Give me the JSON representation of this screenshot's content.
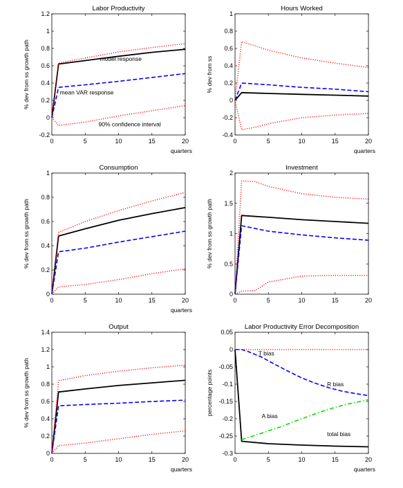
{
  "chart_data": [
    {
      "type": "line",
      "title": "Labor Productivity",
      "xlabel": "quarters",
      "ylabel": "% dev from ss growth path",
      "xlim": [
        0,
        20
      ],
      "ylim": [
        -0.2,
        1.2
      ],
      "xticks": [
        "0",
        "5",
        "10",
        "15",
        "20"
      ],
      "yticks": [
        "-0.2",
        "0",
        "0.2",
        "0.4",
        "0.6",
        "0.8",
        "1",
        "1.2"
      ],
      "grid": false,
      "series": [
        {
          "key": "model",
          "color": "#000000",
          "style": "solid",
          "x": [
            0,
            1,
            5,
            10,
            15,
            20
          ],
          "y": [
            0,
            0.62,
            0.66,
            0.71,
            0.755,
            0.79
          ]
        },
        {
          "key": "var",
          "color": "#0000ff",
          "style": "dashed",
          "x": [
            0,
            1,
            5,
            10,
            15,
            20
          ],
          "y": [
            0,
            0.35,
            0.38,
            0.42,
            0.465,
            0.51
          ]
        },
        {
          "key": "ci_upper",
          "color": "#ff0000",
          "style": "dotted",
          "x": [
            0,
            1,
            5,
            10,
            15,
            20
          ],
          "y": [
            0,
            0.63,
            0.69,
            0.76,
            0.81,
            0.855
          ]
        },
        {
          "key": "ci_lower",
          "color": "#ff0000",
          "style": "dotted",
          "x": [
            0,
            1,
            5,
            10,
            15,
            20
          ],
          "y": [
            0,
            -0.09,
            -0.05,
            0.02,
            0.08,
            0.14
          ]
        }
      ],
      "annotations": [
        {
          "text": "model response",
          "x": 7.2,
          "y": 0.655
        },
        {
          "text": "mean VAR response",
          "x": 1.2,
          "y": 0.27
        },
        {
          "text": "90% confidence interval",
          "x": 7.0,
          "y": -0.1
        }
      ]
    },
    {
      "type": "line",
      "title": "Hours Worked",
      "xlabel": "quarters",
      "ylabel": "% dev from ss",
      "xlim": [
        0,
        20
      ],
      "ylim": [
        -0.4,
        1
      ],
      "xticks": [
        "0",
        "5",
        "10",
        "15",
        "20"
      ],
      "yticks": [
        "-0.4",
        "-0.2",
        "0",
        "0.2",
        "0.4",
        "0.6",
        "0.8",
        "1"
      ],
      "grid": false,
      "series": [
        {
          "key": "model",
          "color": "#000000",
          "style": "solid",
          "x": [
            0,
            1,
            5,
            10,
            15,
            20
          ],
          "y": [
            0,
            0.09,
            0.08,
            0.07,
            0.06,
            0.05
          ]
        },
        {
          "key": "var",
          "color": "#0000ff",
          "style": "dashed",
          "x": [
            0,
            1,
            5,
            10,
            15,
            20
          ],
          "y": [
            0,
            0.2,
            0.18,
            0.15,
            0.13,
            0.1
          ]
        },
        {
          "key": "ci_upper",
          "color": "#ff0000",
          "style": "dotted",
          "x": [
            0,
            1,
            3,
            5,
            10,
            15,
            20
          ],
          "y": [
            0,
            0.68,
            0.63,
            0.58,
            0.49,
            0.43,
            0.38
          ]
        },
        {
          "key": "ci_lower",
          "color": "#ff0000",
          "style": "dotted",
          "x": [
            0,
            1,
            3,
            5,
            10,
            15,
            20
          ],
          "y": [
            0,
            -0.34,
            -0.31,
            -0.27,
            -0.2,
            -0.17,
            -0.15
          ]
        }
      ],
      "annotations": []
    },
    {
      "type": "line",
      "title": "Consumption",
      "xlabel": "quarters",
      "ylabel": "% dev from ss growth path",
      "xlim": [
        0,
        20
      ],
      "ylim": [
        0,
        1
      ],
      "xticks": [
        "0",
        "5",
        "10",
        "15",
        "20"
      ],
      "yticks": [
        "0",
        "0.2",
        "0.4",
        "0.6",
        "0.8",
        "1"
      ],
      "grid": false,
      "series": [
        {
          "key": "model",
          "color": "#000000",
          "style": "solid",
          "x": [
            0,
            1,
            5,
            10,
            15,
            20
          ],
          "y": [
            0,
            0.48,
            0.54,
            0.61,
            0.665,
            0.715
          ]
        },
        {
          "key": "var",
          "color": "#0000ff",
          "style": "dashed",
          "x": [
            0,
            1,
            5,
            10,
            15,
            20
          ],
          "y": [
            0,
            0.35,
            0.38,
            0.43,
            0.475,
            0.52
          ]
        },
        {
          "key": "ci_upper",
          "color": "#ff0000",
          "style": "dotted",
          "x": [
            0,
            1,
            5,
            10,
            15,
            20
          ],
          "y": [
            0,
            0.51,
            0.6,
            0.69,
            0.77,
            0.84
          ]
        },
        {
          "key": "ci_lower",
          "color": "#ff0000",
          "style": "dotted",
          "x": [
            0,
            1,
            5,
            10,
            15,
            20
          ],
          "y": [
            0,
            0.06,
            0.08,
            0.12,
            0.17,
            0.21
          ]
        }
      ],
      "annotations": []
    },
    {
      "type": "line",
      "title": "Investment",
      "xlabel": "",
      "ylabel": "% dev from ss growth path",
      "xlim": [
        0,
        20
      ],
      "ylim": [
        0,
        2
      ],
      "xticks": [
        "0",
        "5",
        "10",
        "15",
        "20"
      ],
      "yticks": [
        "0",
        "0.5",
        "1",
        "1.5",
        "2"
      ],
      "grid": false,
      "series": [
        {
          "key": "model",
          "color": "#000000",
          "style": "solid",
          "x": [
            0,
            1,
            5,
            10,
            15,
            20
          ],
          "y": [
            0,
            1.3,
            1.27,
            1.23,
            1.2,
            1.17
          ]
        },
        {
          "key": "var",
          "color": "#0000ff",
          "style": "dashed",
          "x": [
            0,
            1,
            5,
            10,
            15,
            20
          ],
          "y": [
            0,
            1.13,
            1.04,
            0.98,
            0.93,
            0.89
          ]
        },
        {
          "key": "ci_upper",
          "color": "#ff0000",
          "style": "dotted",
          "x": [
            0,
            1,
            3,
            5,
            10,
            15,
            20
          ],
          "y": [
            0,
            1.87,
            1.86,
            1.78,
            1.66,
            1.6,
            1.57
          ]
        },
        {
          "key": "ci_lower",
          "color": "#ff0000",
          "style": "dotted",
          "x": [
            0,
            1,
            3,
            5,
            10,
            15,
            20
          ],
          "y": [
            0,
            0.05,
            0.06,
            0.2,
            0.3,
            0.31,
            0.31
          ]
        }
      ],
      "annotations": []
    },
    {
      "type": "line",
      "title": "Output",
      "xlabel": "quarters",
      "ylabel": "% dev from ss growth path",
      "xlim": [
        0,
        20
      ],
      "ylim": [
        0,
        1.4
      ],
      "xticks": [
        "0",
        "5",
        "10",
        "15",
        "20"
      ],
      "yticks": [
        "0",
        "0.2",
        "0.4",
        "0.6",
        "0.8",
        "1",
        "1.2",
        "1.4"
      ],
      "grid": false,
      "series": [
        {
          "key": "model",
          "color": "#000000",
          "style": "solid",
          "x": [
            0,
            1,
            5,
            10,
            15,
            20
          ],
          "y": [
            0,
            0.71,
            0.745,
            0.785,
            0.815,
            0.845
          ]
        },
        {
          "key": "var",
          "color": "#0000ff",
          "style": "dashed",
          "x": [
            0,
            1,
            5,
            10,
            15,
            20
          ],
          "y": [
            0,
            0.55,
            0.565,
            0.58,
            0.6,
            0.615
          ]
        },
        {
          "key": "ci_upper",
          "color": "#ff0000",
          "style": "dotted",
          "x": [
            0,
            1,
            5,
            10,
            15,
            20
          ],
          "y": [
            0,
            0.84,
            0.9,
            0.95,
            0.99,
            1.02
          ]
        },
        {
          "key": "ci_lower",
          "color": "#ff0000",
          "style": "dotted",
          "x": [
            0,
            1,
            5,
            10,
            15,
            20
          ],
          "y": [
            0,
            0.09,
            0.12,
            0.17,
            0.22,
            0.26
          ]
        }
      ],
      "annotations": []
    },
    {
      "type": "line",
      "title": "Labor Productivity Error Decomposition",
      "xlabel": "quarters",
      "ylabel": "percentage points",
      "xlim": [
        0,
        20
      ],
      "ylim": [
        -0.3,
        0.05
      ],
      "xticks": [
        "0",
        "5",
        "10",
        "15",
        "20"
      ],
      "yticks": [
        "-0.3",
        "-0.25",
        "-0.2",
        "-0.15",
        "-0.1",
        "-0.05",
        "0",
        "0.05"
      ],
      "grid": false,
      "series": [
        {
          "key": "total_bias",
          "color": "#000000",
          "style": "solid",
          "x": [
            0,
            1,
            5,
            10,
            15,
            20
          ],
          "y": [
            0,
            -0.265,
            -0.272,
            -0.276,
            -0.279,
            -0.281
          ]
        },
        {
          "key": "r_bias",
          "color": "#0000ff",
          "style": "dashed",
          "x": [
            0,
            1,
            2,
            4,
            6,
            8,
            10,
            12,
            14,
            16,
            18,
            20
          ],
          "y": [
            0,
            0,
            -0.006,
            -0.022,
            -0.043,
            -0.063,
            -0.082,
            -0.097,
            -0.11,
            -0.12,
            -0.127,
            -0.133
          ]
        },
        {
          "key": "a_bias",
          "color": "#00dd00",
          "style": "dashdot",
          "x": [
            1,
            3,
            5,
            7,
            9,
            11,
            13,
            15,
            17,
            20
          ],
          "y": [
            -0.26,
            -0.248,
            -0.235,
            -0.222,
            -0.207,
            -0.193,
            -0.179,
            -0.167,
            -0.157,
            -0.145
          ]
        },
        {
          "key": "t_bias",
          "color": "#ff0000",
          "style": "dotted",
          "x": [
            0,
            1,
            5,
            10,
            15,
            20
          ],
          "y": [
            0,
            0,
            0,
            0,
            0,
            0
          ]
        }
      ],
      "annotations": [
        {
          "text": "T bias",
          "x": 3.5,
          "y": -0.017
        },
        {
          "text": "R bias",
          "x": 13.8,
          "y": -0.106
        },
        {
          "text": "A bias",
          "x": 4.0,
          "y": -0.198
        },
        {
          "text": "total bias",
          "x": 13.8,
          "y": -0.25
        }
      ]
    }
  ]
}
